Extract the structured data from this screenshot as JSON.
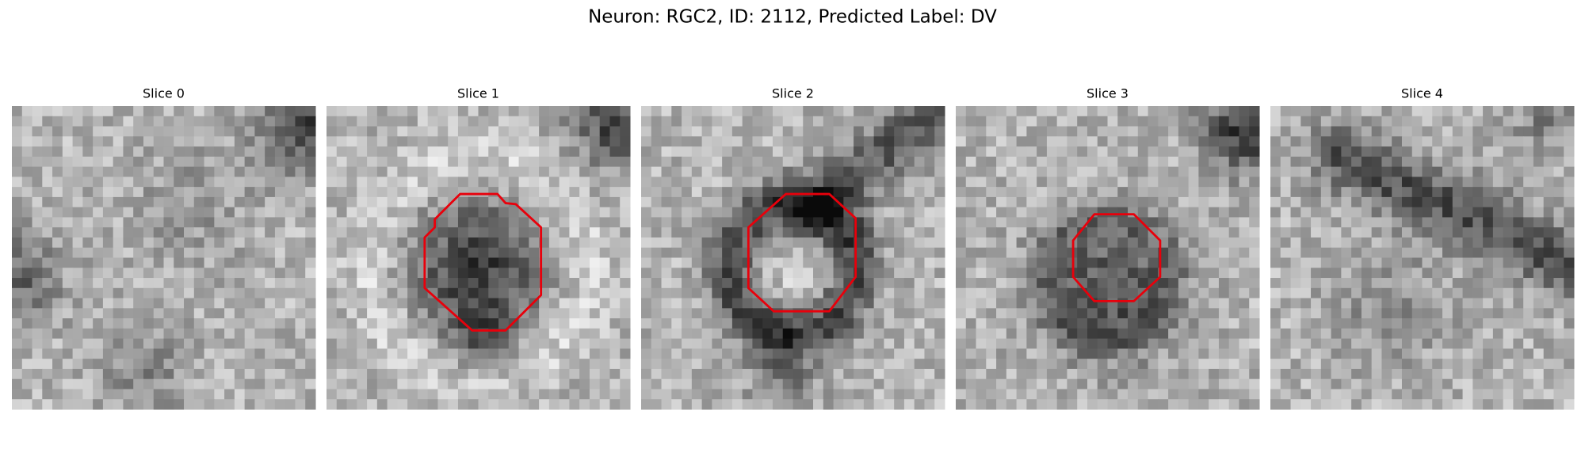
{
  "header": {
    "title": "Neuron: RGC2, ID: 2112, Predicted Label: DV"
  },
  "panels": [
    {
      "title": "Slice 0"
    },
    {
      "title": "Slice 1"
    },
    {
      "title": "Slice 2"
    },
    {
      "title": "Slice 3"
    },
    {
      "title": "Slice 4"
    }
  ]
}
